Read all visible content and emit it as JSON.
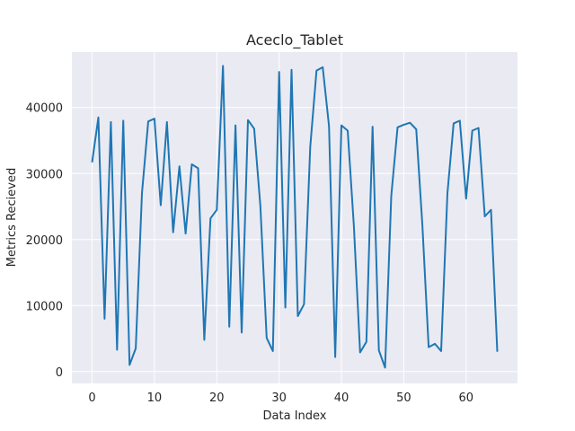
{
  "chart_data": {
    "type": "line",
    "title": "Aceclo_Tablet",
    "xlabel": "Data Index",
    "ylabel": "Metrics Recieved",
    "xlim": [
      -3.25,
      68.25
    ],
    "ylim": [
      -1800,
      48400
    ],
    "xticks": [
      0,
      10,
      20,
      30,
      40,
      50,
      60
    ],
    "yticks": [
      0,
      10000,
      20000,
      30000,
      40000
    ],
    "grid": true,
    "colors": {
      "background": "#eaeaf2",
      "grid": "#ffffff",
      "line": "#1f77b4"
    },
    "series": [
      {
        "x": [
          0,
          1,
          2,
          3,
          4,
          5,
          6,
          7,
          8,
          9,
          10,
          11,
          12,
          13,
          14,
          15,
          16,
          17,
          18,
          19,
          20,
          21,
          22,
          23,
          24,
          25,
          26,
          27,
          28,
          29,
          30,
          31,
          32,
          33,
          34,
          35,
          36,
          37,
          38,
          39,
          40,
          41,
          42,
          43,
          44,
          45,
          46,
          47,
          48,
          49,
          50,
          51,
          52,
          53,
          54,
          55,
          56,
          57,
          58,
          59,
          60,
          61,
          62,
          63,
          64,
          65
        ],
        "y": [
          31700,
          38500,
          8000,
          37800,
          3300,
          38000,
          1000,
          3500,
          27000,
          37900,
          38300,
          25200,
          37800,
          21100,
          31100,
          20900,
          31400,
          30800,
          4800,
          23200,
          24500,
          46300,
          6800,
          37300,
          5900,
          38100,
          36800,
          25100,
          5100,
          3100,
          45400,
          9700,
          45700,
          8400,
          10200,
          34000,
          45600,
          46100,
          37200,
          2200,
          37300,
          36500,
          22000,
          2900,
          4500,
          37100,
          3200,
          600,
          26600,
          37000,
          37400,
          37700,
          36700,
          22000,
          3700,
          4200,
          3100,
          27000,
          37600,
          38000,
          26200,
          36500,
          36900,
          23500,
          24500,
          3000
        ]
      }
    ]
  }
}
